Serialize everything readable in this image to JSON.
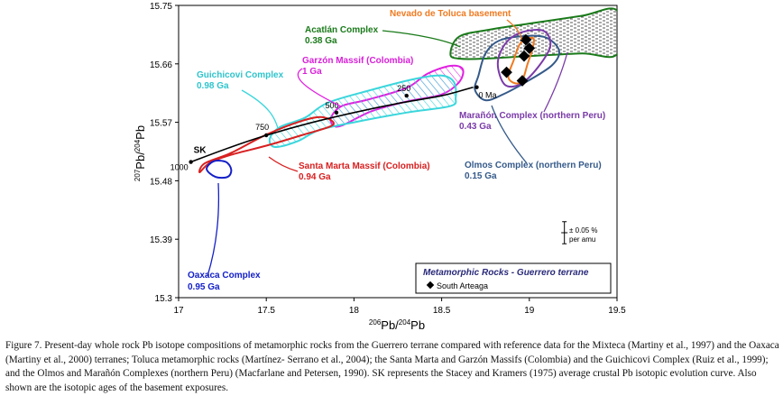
{
  "chart_data": {
    "type": "scatter",
    "xlabel_parts": [
      "206",
      "Pb/",
      "204",
      "Pb"
    ],
    "ylabel_parts": [
      "207",
      "Pb/",
      "204",
      "Pb"
    ],
    "xlim": [
      17,
      19.5
    ],
    "ylim": [
      15.3,
      15.75
    ],
    "x_ticks": [
      "17",
      "17.5",
      "18",
      "18.5",
      "19",
      "19.5"
    ],
    "y_ticks": [
      "15.3",
      "15.39",
      "15.48",
      "15.57",
      "15.66",
      "15.75"
    ],
    "x_tick_values": [
      17,
      17.5,
      18,
      18.5,
      19,
      19.5
    ],
    "y_tick_values": [
      15.3,
      15.39,
      15.48,
      15.57,
      15.66,
      15.75
    ],
    "sk_curve": {
      "label": "SK",
      "points": [
        [
          17.07,
          15.509
        ],
        [
          17.3,
          15.532
        ],
        [
          17.5,
          15.55
        ],
        [
          17.75,
          15.569
        ],
        [
          18.0,
          15.585
        ],
        [
          18.25,
          15.599
        ],
        [
          18.5,
          15.611
        ],
        [
          18.68,
          15.624
        ]
      ],
      "age_labels": [
        {
          "text": "1000",
          "x": 17.07,
          "y": 15.509
        },
        {
          "text": "750",
          "x": 17.5,
          "y": 15.55
        },
        {
          "text": "500",
          "x": 17.9,
          "y": 15.585
        },
        {
          "text": "250",
          "x": 18.3,
          "y": 15.611
        },
        {
          "text": "0 Ma",
          "x": 18.7,
          "y": 15.624
        }
      ]
    },
    "fields": [
      {
        "name": "Acatlán Complex",
        "age": "0.38 Ga",
        "color": "#1a7a1a",
        "hatch": "dots",
        "outline": [
          [
            18.55,
            15.675
          ],
          [
            18.6,
            15.702
          ],
          [
            18.78,
            15.713
          ],
          [
            19.0,
            15.722
          ],
          [
            19.3,
            15.734
          ],
          [
            19.5,
            15.742
          ],
          [
            19.5,
            15.675
          ],
          [
            19.3,
            15.676
          ],
          [
            19.0,
            15.672
          ],
          [
            18.75,
            15.668
          ],
          [
            18.6,
            15.668
          ]
        ]
      },
      {
        "name": "Garzón Massif (Colombia)",
        "age": "1 Ga",
        "color": "#e020e0",
        "hatch": "diag",
        "outline": [
          [
            17.87,
            15.578
          ],
          [
            17.93,
            15.595
          ],
          [
            18.08,
            15.605
          ],
          [
            18.3,
            15.623
          ],
          [
            18.42,
            15.645
          ],
          [
            18.55,
            15.657
          ],
          [
            18.62,
            15.652
          ],
          [
            18.6,
            15.632
          ],
          [
            18.5,
            15.613
          ],
          [
            18.3,
            15.602
          ],
          [
            18.1,
            15.587
          ],
          [
            17.93,
            15.565
          ],
          [
            17.88,
            15.566
          ]
        ]
      },
      {
        "name": "Guichicovi Complex",
        "age": "0.98 Ga",
        "color": "#3ad6dc",
        "hatch": "diag",
        "outline": [
          [
            17.52,
            15.545
          ],
          [
            17.58,
            15.563
          ],
          [
            17.72,
            15.577
          ],
          [
            17.85,
            15.6
          ],
          [
            18.1,
            15.62
          ],
          [
            18.35,
            15.637
          ],
          [
            18.5,
            15.642
          ],
          [
            18.57,
            15.632
          ],
          [
            18.58,
            15.608
          ],
          [
            18.55,
            15.595
          ],
          [
            18.3,
            15.585
          ],
          [
            18.0,
            15.57
          ],
          [
            17.8,
            15.558
          ],
          [
            17.68,
            15.541
          ],
          [
            17.55,
            15.532
          ]
        ]
      },
      {
        "name": "Santa Marta Massif (Colombia)",
        "age": "0.94 Ga",
        "color": "#d82020",
        "hatch": "none",
        "outline": [
          [
            17.12,
            15.493
          ],
          [
            17.18,
            15.508
          ],
          [
            17.3,
            15.52
          ],
          [
            17.5,
            15.534
          ],
          [
            17.7,
            15.55
          ],
          [
            17.88,
            15.566
          ],
          [
            17.82,
            15.578
          ],
          [
            17.7,
            15.572
          ],
          [
            17.5,
            15.551
          ],
          [
            17.3,
            15.523
          ],
          [
            17.15,
            15.507
          ]
        ]
      },
      {
        "name": "Oaxaca Complex",
        "age": "0.95 Ga",
        "color": "#1420c8",
        "hatch": "none",
        "outline": [
          [
            17.16,
            15.498
          ],
          [
            17.21,
            15.486
          ],
          [
            17.28,
            15.486
          ],
          [
            17.3,
            15.497
          ],
          [
            17.27,
            15.509
          ],
          [
            17.2,
            15.51
          ]
        ]
      },
      {
        "name": "Olmos Complex (northern Peru)",
        "age": "0.15 Ga",
        "color": "#355a8a",
        "hatch": "none",
        "outline": [
          [
            18.69,
            15.62
          ],
          [
            18.71,
            15.642
          ],
          [
            18.75,
            15.676
          ],
          [
            18.83,
            15.696
          ],
          [
            18.98,
            15.703
          ],
          [
            19.1,
            15.7
          ],
          [
            19.17,
            15.68
          ],
          [
            19.13,
            15.658
          ],
          [
            19.0,
            15.635
          ],
          [
            18.85,
            15.613
          ],
          [
            18.75,
            15.604
          ]
        ]
      },
      {
        "name": "Marañón Complex (northern Peru)",
        "age": "0.43 Ga",
        "color": "#7a3aa8",
        "hatch": "none",
        "outline": [
          [
            18.82,
            15.66
          ],
          [
            18.86,
            15.69
          ],
          [
            18.95,
            15.708
          ],
          [
            19.08,
            15.711
          ],
          [
            19.12,
            15.688
          ],
          [
            19.05,
            15.655
          ],
          [
            18.95,
            15.629
          ],
          [
            18.86,
            15.628
          ]
        ]
      },
      {
        "name": "Nevado de Toluca basement",
        "age": "",
        "color": "#f07a20",
        "hatch": "none",
        "outline": [
          [
            18.88,
            15.64
          ],
          [
            18.91,
            15.665
          ],
          [
            18.95,
            15.692
          ],
          [
            19.02,
            15.7
          ],
          [
            19.02,
            15.685
          ],
          [
            18.99,
            15.66
          ],
          [
            18.96,
            15.635
          ],
          [
            18.92,
            15.63
          ]
        ]
      }
    ],
    "samples": {
      "name": "South Arteaga",
      "points": [
        [
          18.98,
          15.697
        ],
        [
          19.0,
          15.684
        ],
        [
          18.97,
          15.672
        ],
        [
          18.87,
          15.647
        ],
        [
          18.96,
          15.634
        ]
      ]
    },
    "legend": {
      "title": "Metamorphic Rocks - Guerrero terrane",
      "entry": "South Arteaga",
      "position": "bottom-right"
    },
    "error_bar": {
      "label_line1": "± 0.05 %",
      "label_line2": "per amu",
      "x": 19.2,
      "y": 15.4,
      "half_range_y": 0.017,
      "half_range_x": 0.018
    }
  },
  "caption": "Figure 7. Present-day whole rock Pb isotope compositions of metamorphic rocks from the Guerrero terrane compared with reference data for the Mixteca (Martiny et al., 1997) and the Oaxaca (Martiny et al., 2000) terranes; Toluca metamorphic rocks (Martínez- Serrano et al., 2004); the Santa Marta and Garzón Massifs (Colombia) and the Guichicovi Complex (Ruiz et al., 1999); and the Olmos and Marañón Complexes (northern Peru) (Macfarlane and Petersen, 1990). SK represents the Stacey and Kramers (1975) average crustal Pb isotopic evolution curve. Also shown are the isotopic ages of the basement exposures."
}
